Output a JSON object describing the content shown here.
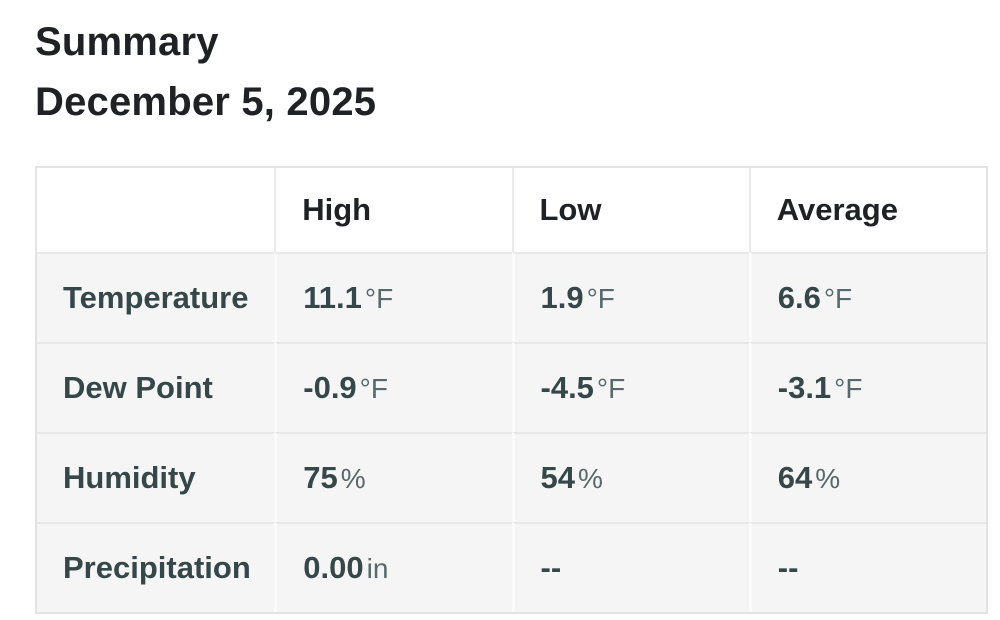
{
  "page": {
    "title": "Summary",
    "date": "December 5, 2025"
  },
  "colors": {
    "title_text": "#1f2124",
    "header_text": "#1f2124",
    "data_text": "#36474a",
    "unit_text": "#57696b",
    "row_background": "#f5f5f6",
    "header_background": "#ffffff",
    "table_border": "#e3e3e3",
    "row_divider": "#e8e8e8"
  },
  "table": {
    "columns": [
      "",
      "High",
      "Low",
      "Average"
    ],
    "rows": [
      {
        "label": "Temperature",
        "high": {
          "value": "11.1",
          "unit": "°F"
        },
        "low": {
          "value": "1.9",
          "unit": "°F"
        },
        "avg": {
          "value": "6.6",
          "unit": "°F"
        }
      },
      {
        "label": "Dew Point",
        "high": {
          "value": "-0.9",
          "unit": "°F"
        },
        "low": {
          "value": "-4.5",
          "unit": "°F"
        },
        "avg": {
          "value": "-3.1",
          "unit": "°F"
        }
      },
      {
        "label": "Humidity",
        "high": {
          "value": "75",
          "unit": "%"
        },
        "low": {
          "value": "54",
          "unit": "%"
        },
        "avg": {
          "value": "64",
          "unit": "%"
        }
      },
      {
        "label": "Precipitation",
        "high": {
          "value": "0.00",
          "unit": "in"
        },
        "low": {
          "value": "--",
          "unit": ""
        },
        "avg": {
          "value": "--",
          "unit": ""
        }
      }
    ]
  }
}
